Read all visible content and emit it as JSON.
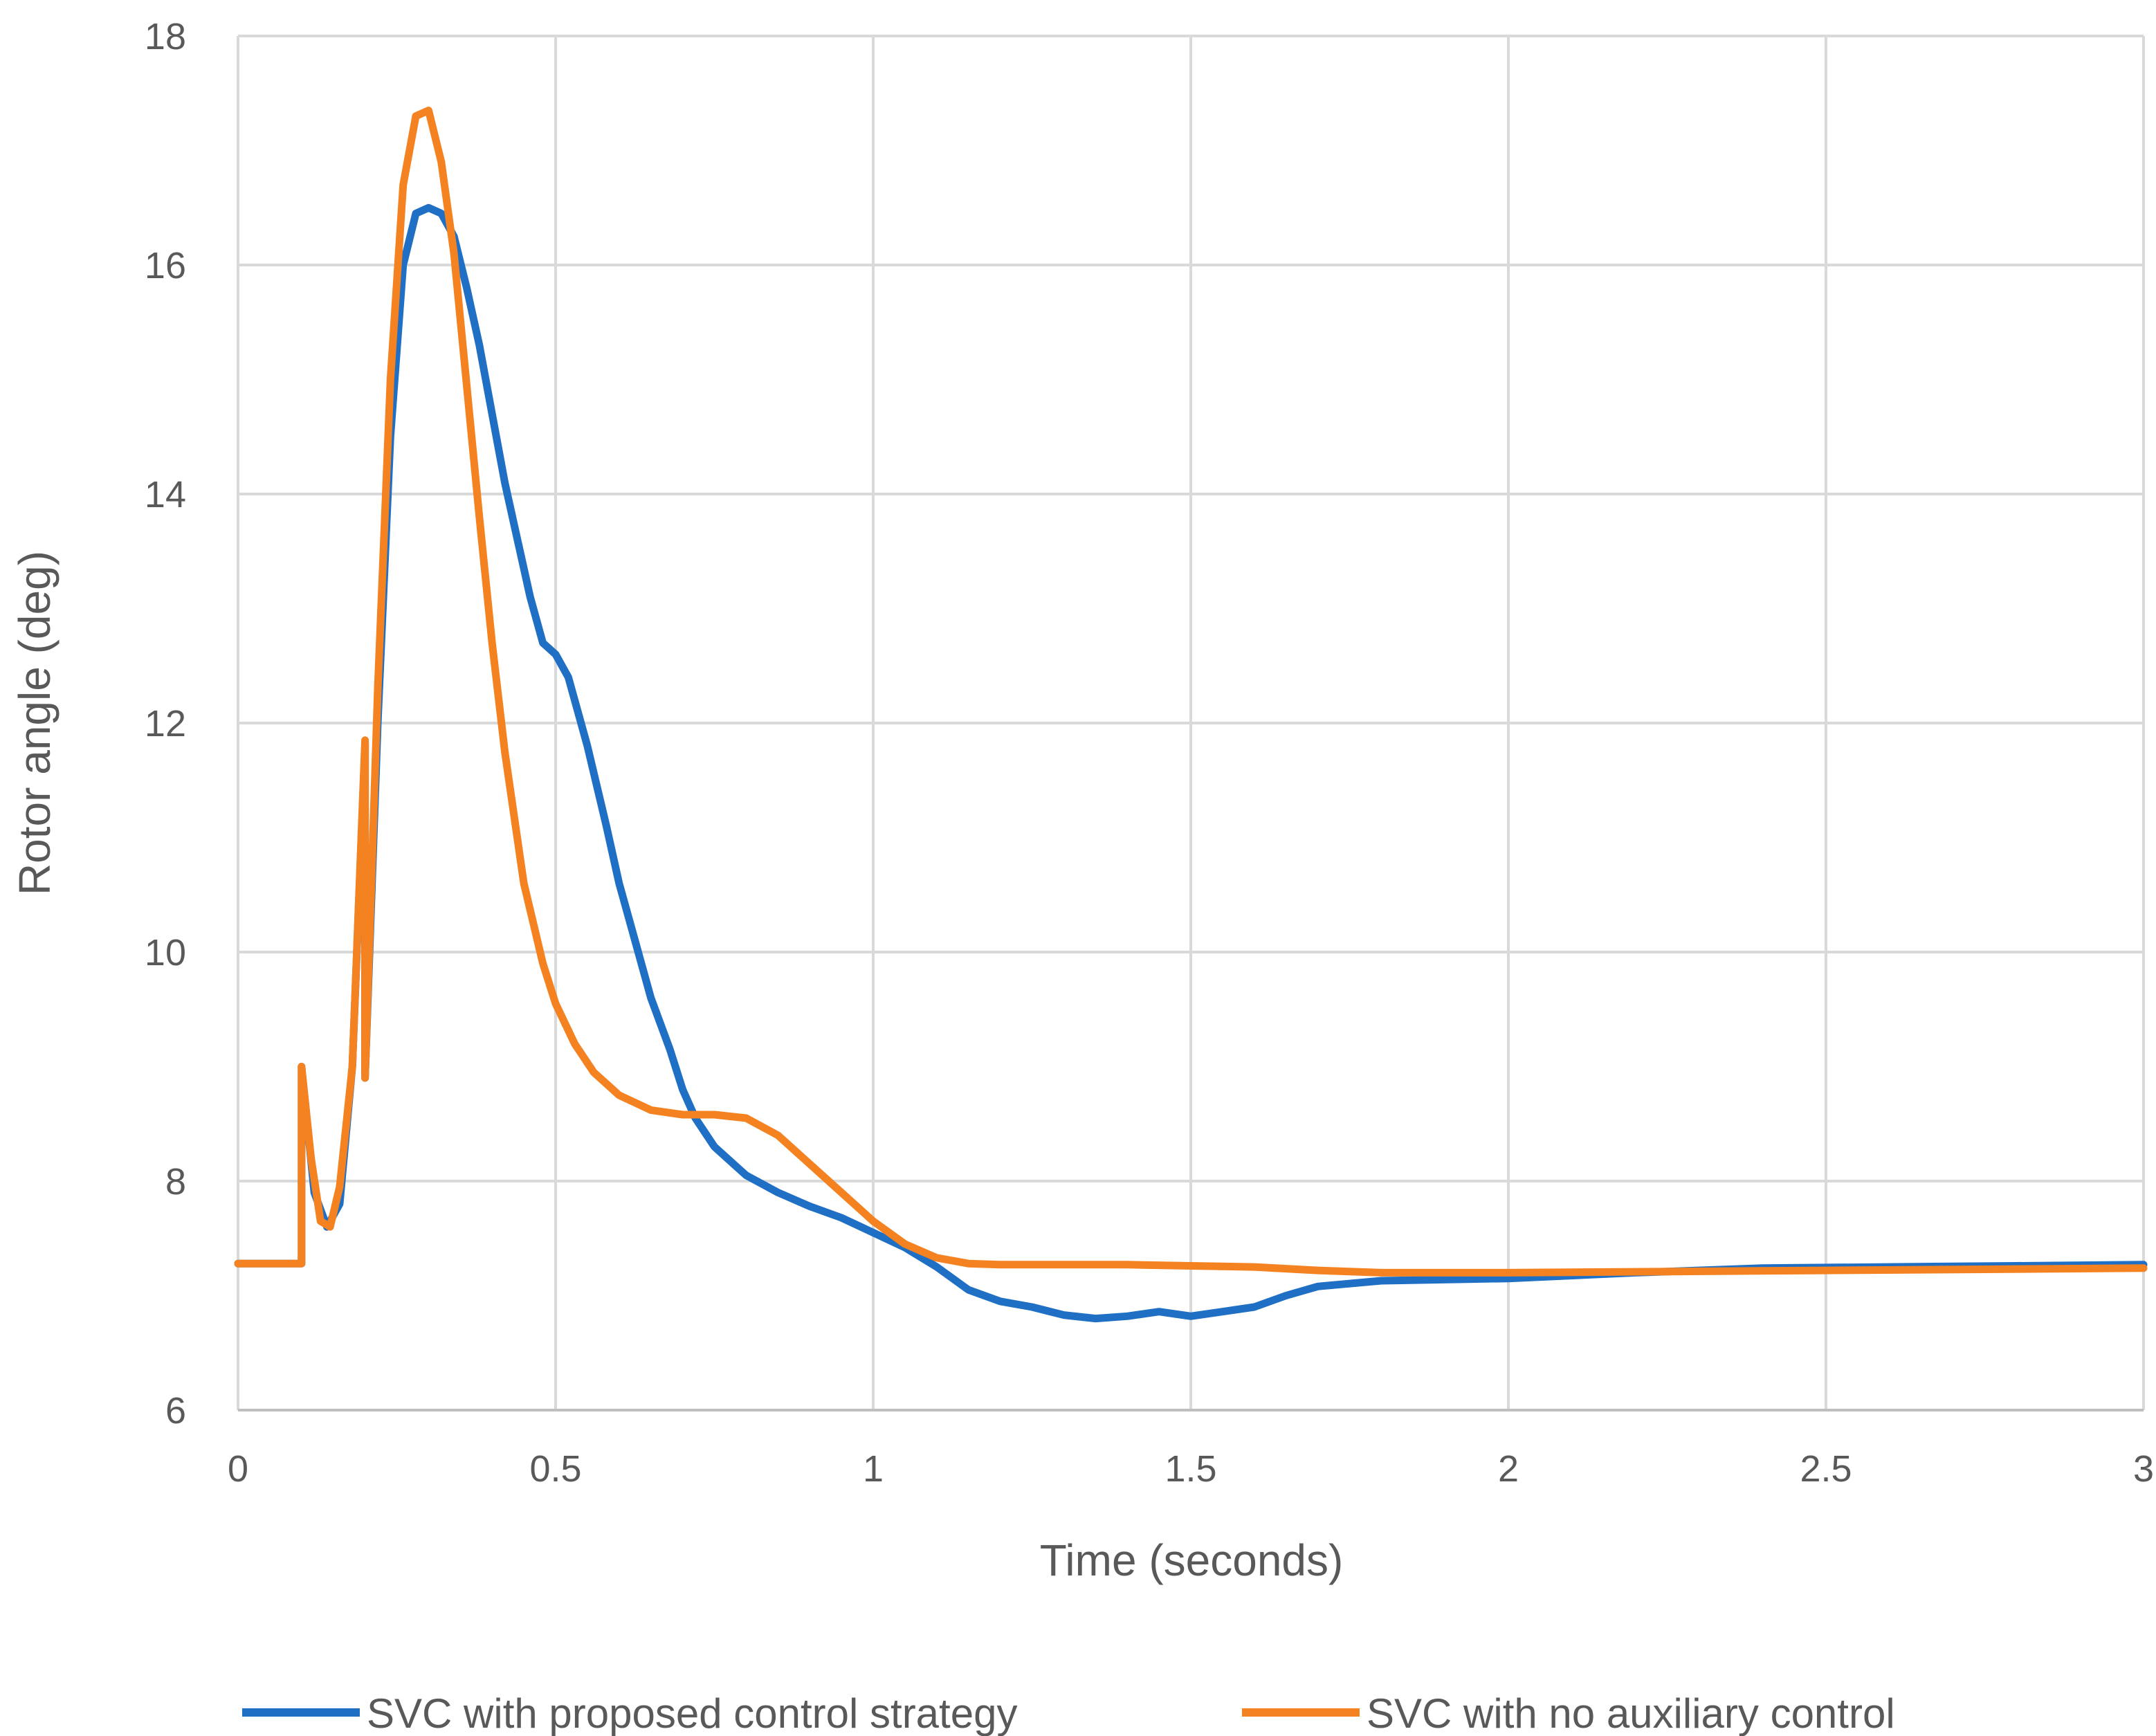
{
  "chart_data": {
    "type": "line",
    "title": "",
    "xlabel": "Time (seconds)",
    "ylabel": "Rotor angle (deg)",
    "xlim": [
      0,
      3
    ],
    "ylim": [
      6,
      18
    ],
    "xticks": [
      0,
      0.5,
      1,
      1.5,
      2,
      2.5,
      3
    ],
    "xtick_labels": [
      "0",
      "0.5",
      "1",
      "1.5",
      "2",
      "2.5",
      "3"
    ],
    "yticks": [
      6,
      8,
      10,
      12,
      14,
      16,
      18
    ],
    "ytick_labels": [
      "6",
      "8",
      "10",
      "12",
      "14",
      "16",
      "18"
    ],
    "grid": true,
    "legend_position": "bottom",
    "series": [
      {
        "name": "SVC with proposed control strategy",
        "color": "#1f6fc5",
        "x": [
          0,
          0.1,
          0.1,
          0.12,
          0.14,
          0.16,
          0.18,
          0.2,
          0.2,
          0.22,
          0.24,
          0.26,
          0.28,
          0.3,
          0.32,
          0.34,
          0.36,
          0.38,
          0.4,
          0.42,
          0.44,
          0.46,
          0.48,
          0.5,
          0.52,
          0.55,
          0.58,
          0.6,
          0.62,
          0.65,
          0.68,
          0.7,
          0.72,
          0.75,
          0.78,
          0.8,
          0.85,
          0.9,
          0.95,
          1.0,
          1.05,
          1.1,
          1.15,
          1.2,
          1.25,
          1.3,
          1.35,
          1.4,
          1.45,
          1.5,
          1.55,
          1.6,
          1.65,
          1.7,
          1.8,
          2.0,
          2.2,
          2.4,
          2.6,
          2.8,
          3.0
        ],
        "y": [
          7.28,
          7.28,
          9.0,
          7.9,
          7.6,
          7.8,
          9.0,
          11.8,
          8.9,
          12.0,
          14.5,
          16.0,
          16.45,
          16.5,
          16.45,
          16.25,
          15.8,
          15.3,
          14.7,
          14.1,
          13.6,
          13.1,
          12.7,
          12.6,
          12.4,
          11.8,
          11.1,
          10.6,
          10.2,
          9.6,
          9.15,
          8.8,
          8.55,
          8.3,
          8.15,
          8.05,
          7.9,
          7.78,
          7.68,
          7.55,
          7.42,
          7.25,
          7.05,
          6.95,
          6.9,
          6.83,
          6.8,
          6.82,
          6.86,
          6.82,
          6.86,
          6.9,
          7.0,
          7.08,
          7.13,
          7.15,
          7.2,
          7.24,
          7.25,
          7.26,
          7.27
        ]
      },
      {
        "name": "SVC with no auxiliary control",
        "color": "#f58220",
        "x": [
          0,
          0.1,
          0.1,
          0.115,
          0.13,
          0.145,
          0.16,
          0.18,
          0.2,
          0.2,
          0.22,
          0.24,
          0.26,
          0.28,
          0.3,
          0.32,
          0.34,
          0.36,
          0.38,
          0.4,
          0.42,
          0.45,
          0.48,
          0.5,
          0.53,
          0.56,
          0.6,
          0.65,
          0.7,
          0.75,
          0.8,
          0.85,
          0.9,
          0.95,
          1.0,
          1.05,
          1.1,
          1.15,
          1.2,
          1.3,
          1.4,
          1.5,
          1.6,
          1.7,
          1.8,
          2.0,
          2.5,
          3.0
        ],
        "y": [
          7.28,
          7.28,
          9.0,
          8.2,
          7.65,
          7.6,
          7.95,
          9.0,
          11.85,
          8.9,
          12.3,
          15.0,
          16.7,
          17.3,
          17.35,
          16.9,
          16.1,
          14.95,
          13.8,
          12.7,
          11.75,
          10.6,
          9.9,
          9.55,
          9.2,
          8.95,
          8.75,
          8.62,
          8.58,
          8.58,
          8.55,
          8.4,
          8.15,
          7.9,
          7.65,
          7.45,
          7.33,
          7.28,
          7.27,
          7.27,
          7.27,
          7.26,
          7.25,
          7.22,
          7.2,
          7.2,
          7.22,
          7.24
        ]
      }
    ]
  }
}
